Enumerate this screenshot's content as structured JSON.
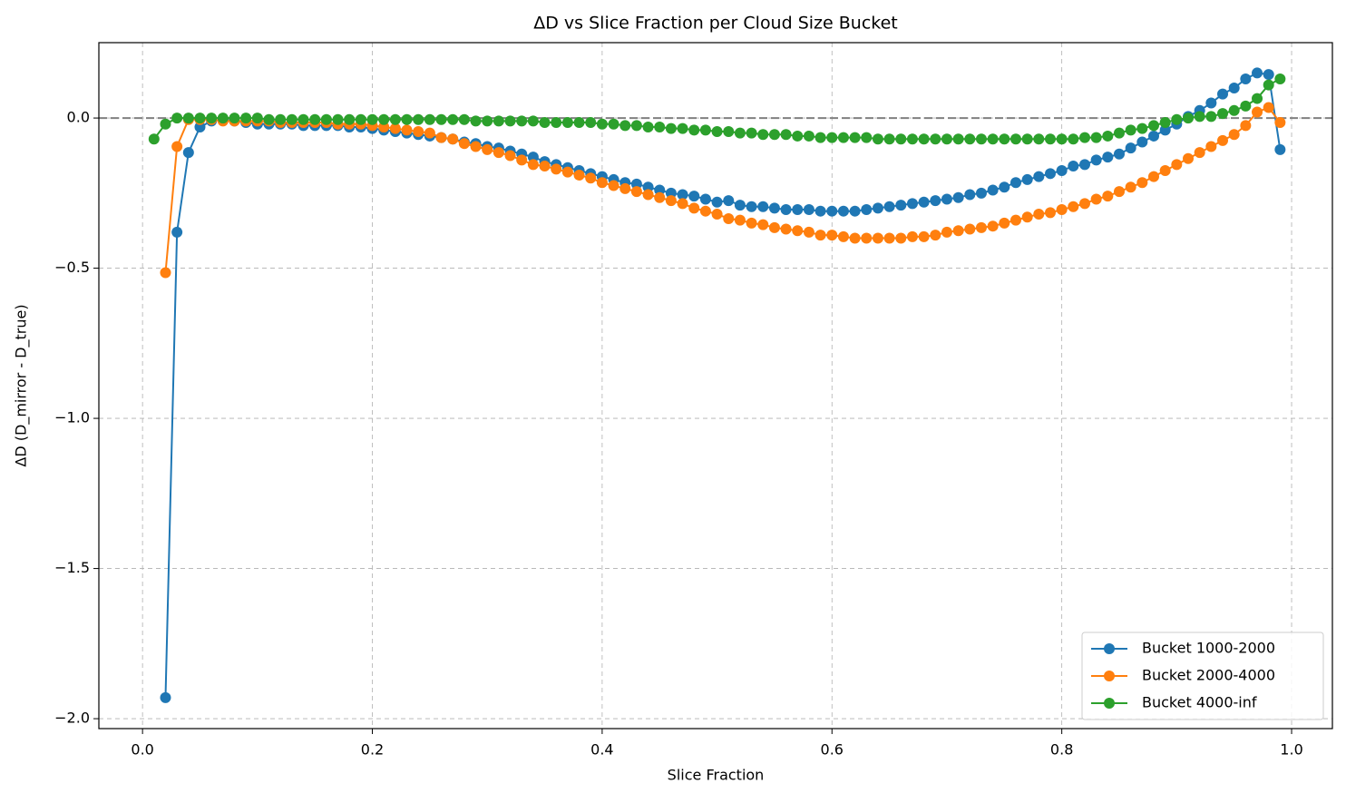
{
  "chart_data": {
    "type": "line",
    "title": "ΔD vs Slice Fraction per Cloud Size Bucket",
    "x_label": "Slice Fraction",
    "y_label": "ΔD (D_mirror - D_true)",
    "x": [
      0.01,
      0.02,
      0.03,
      0.04,
      0.05,
      0.06,
      0.07,
      0.08,
      0.09,
      0.1,
      0.11,
      0.12,
      0.13,
      0.14,
      0.15,
      0.16,
      0.17,
      0.18,
      0.19,
      0.2,
      0.21,
      0.22,
      0.23,
      0.24,
      0.25,
      0.26,
      0.27,
      0.28,
      0.29,
      0.3,
      0.31,
      0.32,
      0.33,
      0.34,
      0.35,
      0.36,
      0.37,
      0.38,
      0.39,
      0.4,
      0.41,
      0.42,
      0.43,
      0.44,
      0.45,
      0.46,
      0.47,
      0.48,
      0.49,
      0.5,
      0.51,
      0.52,
      0.53,
      0.54,
      0.55,
      0.56,
      0.57,
      0.58,
      0.59,
      0.6,
      0.61,
      0.62,
      0.63,
      0.64,
      0.65,
      0.66,
      0.67,
      0.68,
      0.69,
      0.7,
      0.71,
      0.72,
      0.73,
      0.74,
      0.75,
      0.76,
      0.77,
      0.78,
      0.79,
      0.8,
      0.81,
      0.82,
      0.83,
      0.84,
      0.85,
      0.86,
      0.87,
      0.88,
      0.89,
      0.9,
      0.91,
      0.92,
      0.93,
      0.94,
      0.95,
      0.96,
      0.97,
      0.98,
      0.99
    ],
    "series": [
      {
        "name": "Bucket 1000-2000",
        "color": "#1f77b4",
        "values": [
          null,
          -1.93,
          -0.38,
          -0.115,
          -0.03,
          -0.01,
          -0.005,
          -0.01,
          -0.015,
          -0.02,
          -0.02,
          -0.02,
          -0.02,
          -0.025,
          -0.025,
          -0.025,
          -0.025,
          -0.03,
          -0.03,
          -0.035,
          -0.04,
          -0.045,
          -0.05,
          -0.055,
          -0.06,
          -0.065,
          -0.07,
          -0.08,
          -0.085,
          -0.095,
          -0.1,
          -0.11,
          -0.12,
          -0.13,
          -0.145,
          -0.155,
          -0.165,
          -0.175,
          -0.185,
          -0.195,
          -0.205,
          -0.215,
          -0.22,
          -0.23,
          -0.24,
          -0.25,
          -0.255,
          -0.26,
          -0.27,
          -0.28,
          -0.275,
          -0.29,
          -0.295,
          -0.295,
          -0.3,
          -0.305,
          -0.305,
          -0.305,
          -0.31,
          -0.31,
          -0.31,
          -0.31,
          -0.305,
          -0.3,
          -0.295,
          -0.29,
          -0.285,
          -0.28,
          -0.275,
          -0.27,
          -0.265,
          -0.255,
          -0.25,
          -0.24,
          -0.23,
          -0.215,
          -0.205,
          -0.195,
          -0.185,
          -0.175,
          -0.16,
          -0.155,
          -0.14,
          -0.13,
          -0.12,
          -0.1,
          -0.08,
          -0.06,
          -0.04,
          -0.02,
          0.005,
          0.025,
          0.05,
          0.08,
          0.1,
          0.13,
          0.15,
          0.145,
          -0.105
        ]
      },
      {
        "name": "Bucket 2000-4000",
        "color": "#ff7f0e",
        "values": [
          null,
          -0.515,
          -0.095,
          -0.005,
          -0.005,
          -0.005,
          -0.01,
          -0.01,
          -0.01,
          -0.01,
          -0.01,
          -0.015,
          -0.015,
          -0.015,
          -0.015,
          -0.015,
          -0.02,
          -0.02,
          -0.02,
          -0.025,
          -0.03,
          -0.035,
          -0.04,
          -0.045,
          -0.05,
          -0.065,
          -0.07,
          -0.085,
          -0.095,
          -0.105,
          -0.115,
          -0.125,
          -0.14,
          -0.155,
          -0.16,
          -0.17,
          -0.18,
          -0.19,
          -0.2,
          -0.215,
          -0.225,
          -0.235,
          -0.245,
          -0.255,
          -0.265,
          -0.275,
          -0.285,
          -0.3,
          -0.31,
          -0.32,
          -0.335,
          -0.34,
          -0.35,
          -0.355,
          -0.365,
          -0.37,
          -0.375,
          -0.38,
          -0.39,
          -0.39,
          -0.395,
          -0.4,
          -0.4,
          -0.4,
          -0.4,
          -0.4,
          -0.395,
          -0.395,
          -0.39,
          -0.38,
          -0.375,
          -0.37,
          -0.365,
          -0.36,
          -0.35,
          -0.34,
          -0.33,
          -0.32,
          -0.315,
          -0.305,
          -0.295,
          -0.285,
          -0.27,
          -0.26,
          -0.245,
          -0.23,
          -0.215,
          -0.195,
          -0.175,
          -0.155,
          -0.135,
          -0.115,
          -0.095,
          -0.075,
          -0.055,
          -0.025,
          0.02,
          0.035,
          -0.015
        ]
      },
      {
        "name": "Bucket 4000-inf",
        "color": "#2ca02c",
        "values": [
          -0.07,
          -0.02,
          0,
          0,
          0,
          0,
          0,
          0,
          0,
          0,
          -0.005,
          -0.005,
          -0.005,
          -0.005,
          -0.005,
          -0.005,
          -0.005,
          -0.005,
          -0.005,
          -0.005,
          -0.005,
          -0.005,
          -0.005,
          -0.005,
          -0.005,
          -0.005,
          -0.005,
          -0.005,
          -0.01,
          -0.01,
          -0.01,
          -0.01,
          -0.01,
          -0.01,
          -0.015,
          -0.015,
          -0.015,
          -0.015,
          -0.015,
          -0.02,
          -0.02,
          -0.025,
          -0.025,
          -0.03,
          -0.03,
          -0.035,
          -0.035,
          -0.04,
          -0.04,
          -0.045,
          -0.045,
          -0.05,
          -0.05,
          -0.055,
          -0.055,
          -0.055,
          -0.06,
          -0.06,
          -0.065,
          -0.065,
          -0.065,
          -0.065,
          -0.065,
          -0.07,
          -0.07,
          -0.07,
          -0.07,
          -0.07,
          -0.07,
          -0.07,
          -0.07,
          -0.07,
          -0.07,
          -0.07,
          -0.07,
          -0.07,
          -0.07,
          -0.07,
          -0.07,
          -0.07,
          -0.07,
          -0.065,
          -0.065,
          -0.06,
          -0.05,
          -0.04,
          -0.035,
          -0.025,
          -0.015,
          -0.005,
          0,
          0.005,
          0.005,
          0.015,
          0.025,
          0.04,
          0.065,
          0.11,
          0.13
        ]
      }
    ],
    "xlim": [
      -0.038,
      1.0355
    ],
    "ylim": [
      -2.033,
      0.251
    ],
    "xticks": [
      {
        "value": 0,
        "label": "0.0"
      },
      {
        "value": 0.2,
        "label": "0.2"
      },
      {
        "value": 0.4,
        "label": "0.4"
      },
      {
        "value": 0.6,
        "label": "0.6"
      },
      {
        "value": 0.8,
        "label": "0.8"
      },
      {
        "value": 1,
        "label": "1.0"
      }
    ],
    "yticks": [
      {
        "value": -2,
        "label": "−2.0"
      },
      {
        "value": -1.5,
        "label": "−1.5"
      },
      {
        "value": -1,
        "label": "−1.0"
      },
      {
        "value": -0.5,
        "label": "−0.5"
      },
      {
        "value": 0,
        "label": "0.0"
      }
    ],
    "grid": true,
    "reference_line": {
      "y": 0,
      "color": "#808080"
    },
    "legend": "lower right"
  }
}
